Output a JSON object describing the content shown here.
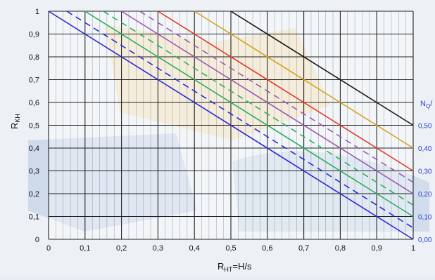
{
  "chart_data": {
    "type": "line",
    "title": "",
    "xlabel_main": "R",
    "xlabel_sub": "HT",
    "xlabel_rest": "=H/s",
    "ylabel_main": "R",
    "ylabel_sub": "KH",
    "xlim": [
      0,
      1
    ],
    "ylim": [
      0,
      1
    ],
    "x_ticks": [
      "0",
      "0,1",
      "0,2",
      "0,3",
      "0,4",
      "0,5",
      "0,6",
      "0,7",
      "0,8",
      "0,9",
      "1"
    ],
    "y_ticks": [
      "0",
      "0,1",
      "0,2",
      "0,3",
      "0,4",
      "0,5",
      "0,6",
      "0,7",
      "0,8",
      "0,9",
      "1"
    ],
    "grid": true,
    "minor_grid": true,
    "right_axis": {
      "title_main": "N",
      "title_sub": "Q",
      "title_rest": "/",
      "color": "#2a3fd6",
      "ticks": [
        "0,00",
        "0,10",
        "0,20",
        "0,30",
        "0,40",
        "0,50"
      ],
      "tick_values": [
        0.0,
        0.1,
        0.2,
        0.3,
        0.4,
        0.5
      ]
    },
    "series": [
      {
        "intercept": 1.0,
        "color": "#2b2bd6",
        "dashed": false,
        "x": [
          0,
          1
        ],
        "y": [
          1.0,
          0.0
        ]
      },
      {
        "intercept": 1.05,
        "color": "#2b2bd6",
        "dashed": true,
        "x": [
          0.05,
          1
        ],
        "y": [
          1.0,
          0.05
        ]
      },
      {
        "intercept": 1.1,
        "color": "#2fae5e",
        "dashed": false,
        "x": [
          0.1,
          1
        ],
        "y": [
          1.0,
          0.1
        ]
      },
      {
        "intercept": 1.15,
        "color": "#2fae5e",
        "dashed": true,
        "x": [
          0.15,
          1
        ],
        "y": [
          1.0,
          0.15
        ]
      },
      {
        "intercept": 1.2,
        "color": "#9b5ab2",
        "dashed": false,
        "x": [
          0.2,
          1
        ],
        "y": [
          1.0,
          0.2
        ]
      },
      {
        "intercept": 1.25,
        "color": "#9b5ab2",
        "dashed": true,
        "x": [
          0.25,
          1
        ],
        "y": [
          1.0,
          0.25
        ]
      },
      {
        "intercept": 1.3,
        "color": "#e23a2b",
        "dashed": false,
        "x": [
          0.3,
          1
        ],
        "y": [
          1.0,
          0.3
        ]
      },
      {
        "intercept": 1.4,
        "color": "#d6a31c",
        "dashed": false,
        "x": [
          0.4,
          1
        ],
        "y": [
          1.0,
          0.4
        ]
      },
      {
        "intercept": 1.5,
        "color": "#1a1a1a",
        "dashed": false,
        "x": [
          0.5,
          1
        ],
        "y": [
          1.0,
          0.5
        ]
      }
    ]
  }
}
